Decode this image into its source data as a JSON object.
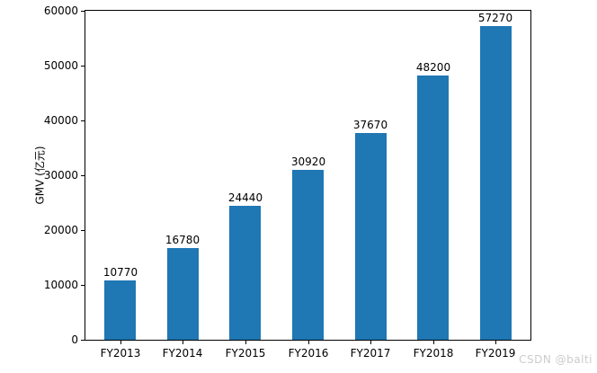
{
  "chart_data": {
    "type": "bar",
    "categories": [
      "FY2013",
      "FY2014",
      "FY2015",
      "FY2016",
      "FY2017",
      "FY2018",
      "FY2019"
    ],
    "values": [
      10770,
      16780,
      24440,
      30920,
      37670,
      48200,
      57270
    ],
    "bar_labels": [
      "10770",
      "16780",
      "24440",
      "30920",
      "37670",
      "48200",
      "57270"
    ],
    "title": "",
    "xlabel": "",
    "ylabel": "GMV (亿元)",
    "ylim": [
      0,
      60000
    ],
    "yticks": [
      0,
      10000,
      20000,
      30000,
      40000,
      50000,
      60000
    ],
    "ytick_labels": [
      "0",
      "10000",
      "20000",
      "30000",
      "40000",
      "50000",
      "60000"
    ],
    "bar_color": "#1f77b4",
    "grid": false,
    "legend_position": "none"
  },
  "watermark": {
    "text": "CSDN @balti",
    "color": "#cccccc"
  }
}
